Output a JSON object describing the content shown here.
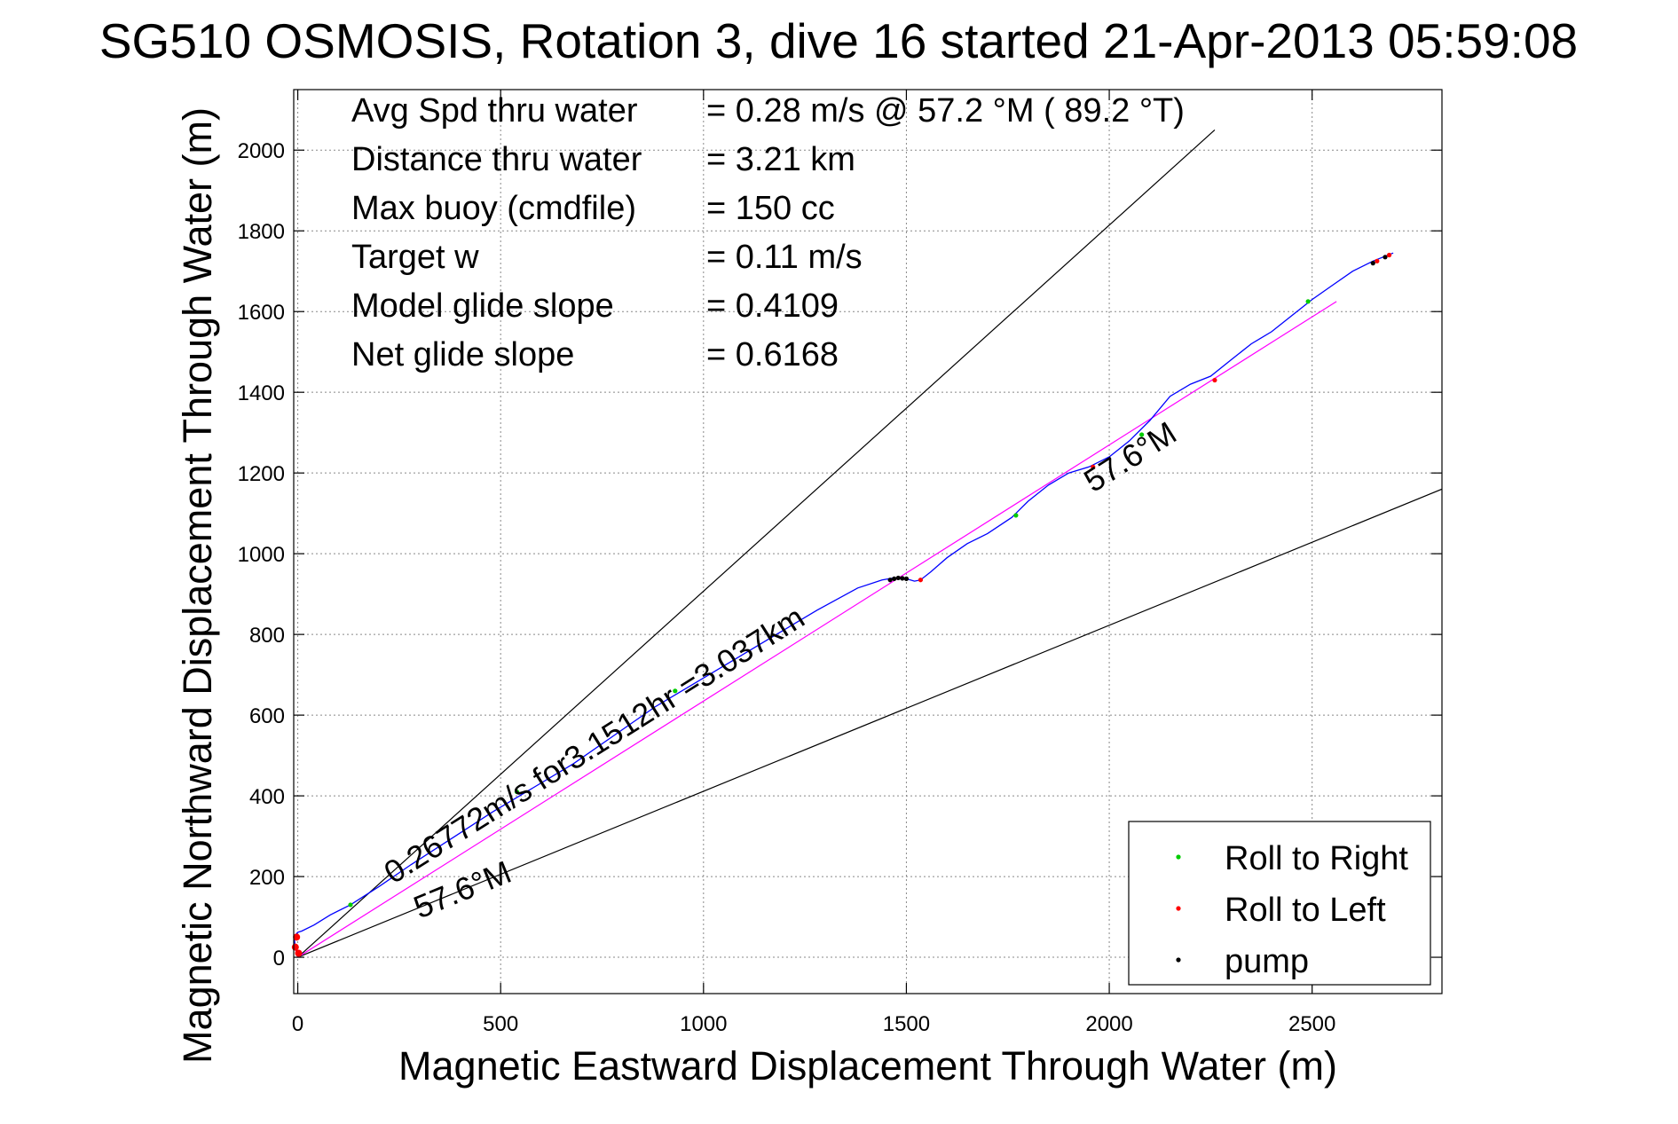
{
  "chart_data": {
    "type": "line",
    "title": "SG510 OSMOSIS, Rotation 3, dive 16 started 21-Apr-2013 05:59:08",
    "xlabel": "Magnetic Eastward Displacement Through Water (m)",
    "ylabel": "Magnetic Northward Displacement Through Water (m)",
    "xlim": [
      -10,
      2820
    ],
    "ylim": [
      -90,
      2150
    ],
    "xticks": [
      "0",
      "500",
      "1000",
      "1500",
      "2000",
      "2500"
    ],
    "yticks": [
      "0",
      "200",
      "400",
      "600",
      "800",
      "1000",
      "1200",
      "1400",
      "1600",
      "1800",
      "2000"
    ],
    "grid": true,
    "legend_position": "bottom-right",
    "stats": [
      {
        "label": "Avg Spd thru water",
        "value": "=  0.28 m/s @  57.2 °M ( 89.2 °T)"
      },
      {
        "label": "Distance thru water",
        "value": "=  3.21 km"
      },
      {
        "label": "Max buoy (cmdfile)",
        "value": "= 150 cc"
      },
      {
        "label": "Target w",
        "value": "= 0.11 m/s"
      },
      {
        "label": "Model glide slope",
        "value": "= 0.4109"
      },
      {
        "label": "Net glide slope",
        "value": "= 0.6168"
      }
    ],
    "annotations": [
      {
        "text": "0.26772m/s for3.1512hr =3.037km",
        "x": 235,
        "y": 180
      },
      {
        "text": "57.6°M",
        "x": 300,
        "y": 95
      },
      {
        "text": "57.6°M",
        "x": 1960,
        "y": 1150
      }
    ],
    "legend": [
      {
        "label": "Roll to Right",
        "color": "#00cc00"
      },
      {
        "label": "Roll to Left",
        "color": "#ff0000"
      },
      {
        "label": "pump",
        "color": "#000000"
      }
    ],
    "lines": [
      {
        "role": "heading-upper",
        "color": "#000000",
        "x": [
          0,
          2260
        ],
        "y": [
          0,
          2050
        ]
      },
      {
        "role": "heading-lower",
        "color": "#000000",
        "x": [
          0,
          2820
        ],
        "y": [
          0,
          1160
        ]
      },
      {
        "role": "net-displacement",
        "color": "#ff00ff",
        "x": [
          0,
          2560
        ],
        "y": [
          0,
          1625
        ]
      }
    ],
    "series": [
      {
        "role": "track",
        "color": "#0000ff",
        "x": [
          0,
          -5,
          -8,
          -6,
          0,
          10,
          40,
          80,
          130,
          200,
          280,
          380,
          480,
          580,
          680,
          780,
          880,
          980,
          1080,
          1180,
          1280,
          1380,
          1440,
          1470,
          1500,
          1520,
          1535,
          1560,
          1600,
          1650,
          1700,
          1760,
          1800,
          1850,
          1900,
          1950,
          2000,
          2050,
          2100,
          2150,
          2200,
          2250,
          2300,
          2350,
          2400,
          2450,
          2500,
          2550,
          2600,
          2650,
          2700
        ],
        "y": [
          0,
          20,
          40,
          55,
          62,
          65,
          80,
          105,
          130,
          175,
          230,
          295,
          360,
          420,
          480,
          550,
          620,
          680,
          740,
          800,
          860,
          915,
          935,
          940,
          938,
          932,
          935,
          955,
          990,
          1025,
          1050,
          1090,
          1130,
          1170,
          1200,
          1215,
          1240,
          1280,
          1330,
          1390,
          1420,
          1440,
          1480,
          1520,
          1550,
          1590,
          1630,
          1665,
          1700,
          1725,
          1745
        ]
      }
    ],
    "markers": {
      "roll_right": {
        "x": [
          130,
          540,
          930,
          1770,
          2080,
          2490
        ],
        "y": [
          130,
          410,
          660,
          1095,
          1295,
          1625
        ]
      },
      "roll_left": {
        "x": [
          -6,
          -3,
          2,
          1535,
          1960,
          2260,
          2660,
          2690
        ],
        "y": [
          25,
          50,
          10,
          935,
          1215,
          1430,
          1725,
          1740
        ]
      },
      "pump": {
        "x": [
          1460,
          1470,
          1480,
          1490,
          1500,
          2650,
          2680
        ],
        "y": [
          935,
          938,
          940,
          939,
          938,
          1720,
          1735
        ]
      }
    }
  }
}
